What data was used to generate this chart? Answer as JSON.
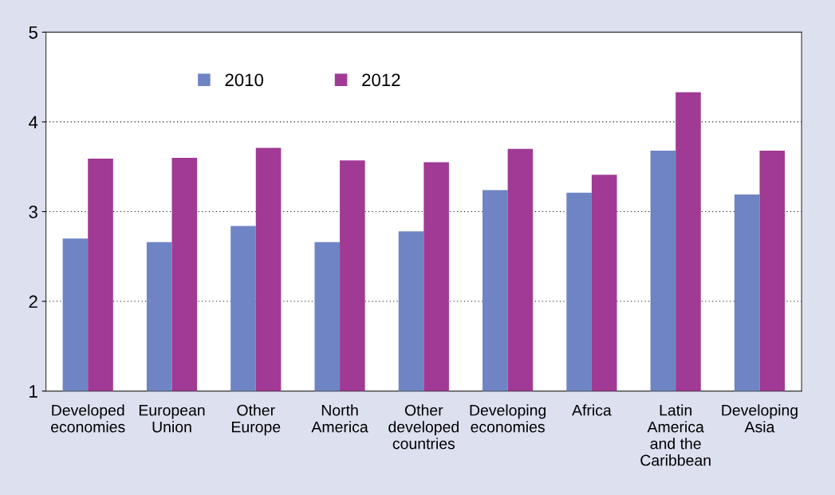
{
  "chart_data": {
    "type": "bar",
    "categories": [
      "Developed\neconomies",
      "European\nUnion",
      "Other\nEurope",
      "North\nAmerica",
      "Other\ndeveloped\ncountries",
      "Developing\neconomies",
      "Africa",
      "Latin\nAmerica\nand the\nCaribbean",
      "Developing\nAsia"
    ],
    "series": [
      {
        "name": "2010",
        "color": "#6f84c4",
        "values": [
          2.7,
          2.66,
          2.84,
          2.66,
          2.78,
          3.24,
          3.21,
          3.68,
          3.19
        ]
      },
      {
        "name": "2012",
        "color": "#a03a94",
        "values": [
          3.59,
          3.6,
          3.71,
          3.57,
          3.55,
          3.7,
          3.41,
          4.33,
          3.68
        ]
      }
    ],
    "ylim": [
      1,
      5
    ],
    "yticks": [
      1,
      2,
      3,
      4,
      5
    ],
    "grid": "y",
    "legend": "top left"
  }
}
